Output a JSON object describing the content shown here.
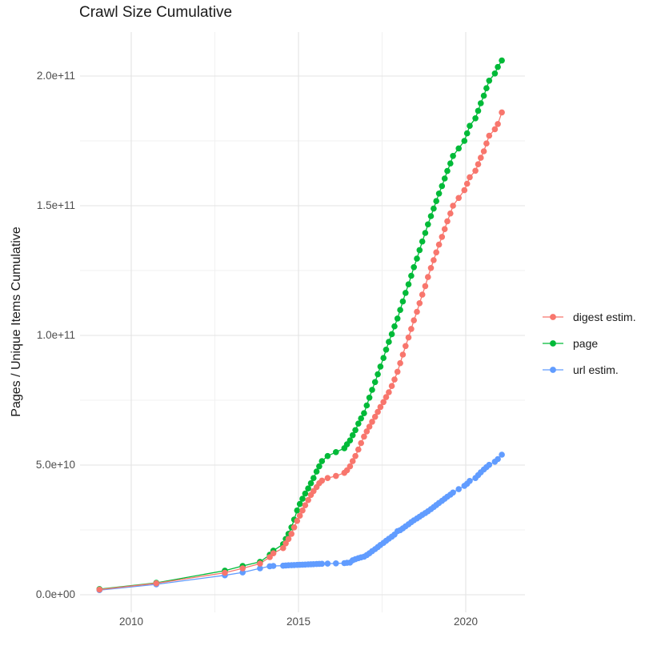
{
  "title": "Crawl Size Cumulative",
  "axes": {
    "x": {
      "tick_labels": [
        "2010",
        "2015",
        "2020"
      ],
      "tick_years": [
        2010,
        2015,
        2020
      ],
      "minor_years": [
        2012.5,
        2017.5
      ]
    },
    "y": {
      "label": "Pages / Unique Items Cumulative",
      "tick_labels": [
        "0.0e+00",
        "5.0e+10",
        "1.0e+11",
        "1.5e+11",
        "2.0e+11"
      ],
      "tick_values_billions": [
        0,
        50,
        100,
        150,
        200
      ],
      "minor_values_billions": [
        25,
        75,
        125,
        175
      ]
    }
  },
  "legend": {
    "items": [
      {
        "label": "digest estim.",
        "color": "#F8766D"
      },
      {
        "label": "page",
        "color": "#00BA38"
      },
      {
        "label": "url estim.",
        "color": "#619CFF"
      }
    ]
  },
  "colors": {
    "grid_major": "#e3e3e3",
    "grid_minor": "#f1f1f1",
    "background": "#ffffff"
  },
  "chart_data": {
    "type": "line",
    "title": "Crawl Size Cumulative",
    "xlabel": "",
    "ylabel": "Pages / Unique Items Cumulative",
    "value_unit": "1e9 (values are billions of pages / unique items)",
    "xlim_years": [
      2008.45,
      2021.7
    ],
    "ylim_billions": [
      -4.5,
      217
    ],
    "grid": true,
    "legend_position": "right",
    "marker": "point",
    "x_years": [
      2009.05,
      2010.75,
      2012.8,
      2013.33,
      2013.85,
      2014.14,
      2014.25,
      2014.54,
      2014.62,
      2014.7,
      2014.79,
      2014.87,
      2014.96,
      2015.04,
      2015.12,
      2015.2,
      2015.29,
      2015.37,
      2015.45,
      2015.54,
      2015.62,
      2015.7,
      2015.87,
      2016.12,
      2016.37,
      2016.45,
      2016.54,
      2016.62,
      2016.7,
      2016.79,
      2016.87,
      2016.96,
      2017.04,
      2017.12,
      2017.2,
      2017.29,
      2017.37,
      2017.45,
      2017.54,
      2017.62,
      2017.7,
      2017.79,
      2017.87,
      2017.96,
      2018.04,
      2018.12,
      2018.2,
      2018.29,
      2018.37,
      2018.45,
      2018.54,
      2018.62,
      2018.7,
      2018.79,
      2018.87,
      2018.96,
      2019.04,
      2019.12,
      2019.2,
      2019.29,
      2019.37,
      2019.45,
      2019.54,
      2019.62,
      2019.79,
      2019.96,
      2020.04,
      2020.12,
      2020.29,
      2020.37,
      2020.45,
      2020.54,
      2020.62,
      2020.7,
      2020.87,
      2020.96,
      2021.08
    ],
    "series": [
      {
        "name": "page",
        "color": "#00BA38",
        "values_billions": [
          2.2,
          4.6,
          9.3,
          11.1,
          12.7,
          15.4,
          17,
          19.5,
          21.5,
          23.5,
          26,
          29,
          32.5,
          35,
          37,
          39,
          41,
          43,
          45,
          47.5,
          49.5,
          51.5,
          53.5,
          55,
          56.5,
          58,
          59.5,
          61.5,
          63.5,
          66,
          68,
          70,
          73,
          76,
          79,
          82,
          85,
          88,
          91.3,
          94.5,
          97.5,
          100.5,
          103.5,
          106.5,
          109.8,
          113.1,
          116.4,
          119.7,
          123,
          126.3,
          129.6,
          132.9,
          136.2,
          139.5,
          142.8,
          146,
          148.9,
          151.8,
          154.7,
          157.6,
          160.5,
          163.4,
          166.3,
          169.2,
          172.1,
          175,
          177.9,
          180.8,
          183.7,
          186.6,
          189.5,
          192.4,
          195.3,
          198.2,
          201,
          203.5,
          206
        ]
      },
      {
        "name": "url estim.",
        "color": "#619CFF",
        "values_billions": [
          1.8,
          4,
          7.5,
          8.6,
          10.2,
          11,
          11.1,
          11.2,
          11.3,
          11.35,
          11.4,
          11.45,
          11.5,
          11.55,
          11.6,
          11.65,
          11.7,
          11.75,
          11.8,
          11.85,
          11.9,
          11.95,
          12,
          12.1,
          12.2,
          12.3,
          12.4,
          13.3,
          13.7,
          14.1,
          14.4,
          14.7,
          15.3,
          16,
          16.8,
          17.6,
          18.4,
          19.2,
          20,
          20.8,
          21.6,
          22.4,
          23.2,
          24.5,
          24.9,
          25.6,
          26.4,
          27.2,
          28,
          28.7,
          29.4,
          30.1,
          30.8,
          31.5,
          32.2,
          33,
          33.8,
          34.6,
          35.4,
          36.2,
          37,
          37.8,
          38.6,
          39.4,
          40.7,
          42,
          42.8,
          43.9,
          45,
          46.1,
          47.2,
          48.3,
          49.2,
          50.1,
          51.3,
          52.3,
          54
        ]
      },
      {
        "name": "digest estim.",
        "color": "#F8766D",
        "values_billions": [
          2,
          4.4,
          8.5,
          10.2,
          12,
          14.5,
          16,
          18,
          19.8,
          21.5,
          23.5,
          26,
          28.5,
          30.5,
          32.5,
          34.5,
          36.5,
          38.5,
          40,
          41.5,
          43,
          44,
          45,
          45.8,
          47,
          48,
          49.5,
          51.5,
          53.5,
          56,
          58.5,
          61,
          63,
          64.8,
          66.7,
          68.6,
          70.5,
          72.4,
          74.3,
          76.2,
          78.1,
          80.5,
          83,
          86,
          89.3,
          92.6,
          95.9,
          99.2,
          102.5,
          105.8,
          109.1,
          112.4,
          115.7,
          119,
          122.5,
          126,
          129,
          132,
          135,
          138,
          141,
          144,
          147,
          150,
          153,
          156,
          158.5,
          161,
          163.5,
          166,
          168.5,
          171,
          174,
          177,
          179.5,
          181.5,
          186
        ]
      }
    ]
  }
}
